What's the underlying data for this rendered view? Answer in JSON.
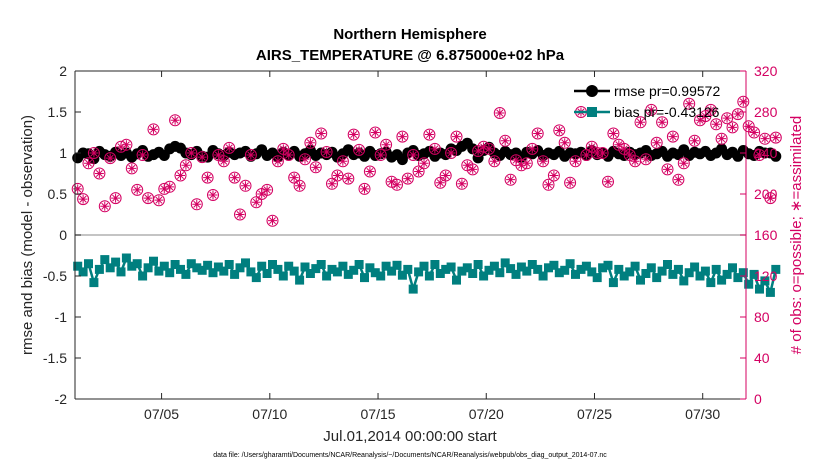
{
  "chart_data": {
    "type": "line",
    "title": "Northern Hemisphere",
    "subtitle": "AIRS_TEMPERATURE @ 6.875000e+02 hPa",
    "xlabel": "Jul.01,2014 00:00:00 start",
    "ylabel_left": "rmse and bias (model - observation)",
    "ylabel_right": "# of obs: o=possible; ∗=assimilated",
    "ylim_left": [
      -2,
      2
    ],
    "ylim_right": [
      0,
      320
    ],
    "xlim_days": [
      1,
      32
    ],
    "yticks_left": [
      "-2",
      "-1.5",
      "-1",
      "-0.5",
      "0",
      "0.5",
      "1",
      "1.5",
      "2"
    ],
    "yticks_right": [
      "0",
      "40",
      "80",
      "120",
      "160",
      "200",
      "240",
      "280",
      "320"
    ],
    "xticks": [
      {
        "day": 5,
        "label": "07/05"
      },
      {
        "day": 10,
        "label": "07/10"
      },
      {
        "day": 15,
        "label": "07/15"
      },
      {
        "day": 20,
        "label": "07/20"
      },
      {
        "day": 25,
        "label": "07/25"
      },
      {
        "day": 30,
        "label": "07/30"
      }
    ],
    "zero_line": true,
    "legend": [
      "rmse pr=0.99572",
      "bias pr=-0.43126"
    ],
    "footnote": "data file: /Users/gharamti/Documents/NCAR/Reanalysis/~/Documents/NCAR/Reanalysis/webpub/obs_diag_output_2014-07.nc",
    "series": [
      {
        "name": "rmse",
        "axis": "left",
        "color": "#000000",
        "x_start": 1.125,
        "x_step": 0.25,
        "values": [
          0.94,
          1.0,
          0.99,
          0.93,
          1.02,
          0.98,
          0.96,
          1.01,
          0.97,
          1.0,
          0.95,
          0.99,
          1.03,
          0.96,
          0.98,
          1.01,
          0.97,
          1.05,
          1.08,
          1.06,
          1.0,
          0.98,
          1.02,
          0.96,
          0.95,
          1.03,
          0.99,
          0.97,
          1.01,
          0.98,
          1.0,
          1.02,
          0.96,
          0.99,
          1.04,
          0.97,
          1.0,
          0.95,
          1.01,
          0.98,
          1.02,
          0.96,
          0.99,
          1.03,
          0.97,
          1.0,
          0.98,
          1.01,
          0.95,
          0.99,
          1.04,
          0.98,
          1.0,
          0.96,
          1.02,
          0.97,
          0.99,
          1.01,
          0.95,
          0.98,
          0.92,
          1.0,
          1.03,
          0.97,
          0.99,
          1.02,
          0.96,
          1.0,
          0.98,
          1.05,
          1.03,
          1.08,
          1.12,
          1.05,
          0.94,
          1.03,
          1.07,
          1.0,
          0.97,
          1.02,
          0.98,
          1.0,
          0.95,
          1.01,
          0.99,
          1.03,
          0.97,
          1.0,
          0.98,
          1.02,
          0.96,
          1.0,
          0.99,
          1.01,
          0.97,
          1.03,
          0.98,
          1.0,
          0.96,
          1.02,
          0.99,
          0.97,
          1.01,
          0.98,
          1.0,
          1.03,
          0.97,
          0.99,
          1.02,
          0.96,
          1.0,
          0.98,
          1.04,
          0.97,
          1.01,
          0.99,
          1.02,
          0.97,
          1.0,
          1.05,
          0.98,
          1.01,
          0.96,
          1.03,
          0.99,
          0.97,
          1.02,
          1.0,
          1.0,
          0.96
        ]
      },
      {
        "name": "bias",
        "axis": "left",
        "color": "#007f7f",
        "x_start": 1.125,
        "x_step": 0.25,
        "values": [
          -0.38,
          -0.45,
          -0.35,
          -0.58,
          -0.42,
          -0.3,
          -0.4,
          -0.33,
          -0.45,
          -0.28,
          -0.38,
          -0.35,
          -0.5,
          -0.4,
          -0.32,
          -0.44,
          -0.38,
          -0.46,
          -0.36,
          -0.42,
          -0.48,
          -0.35,
          -0.4,
          -0.43,
          -0.37,
          -0.46,
          -0.39,
          -0.44,
          -0.36,
          -0.48,
          -0.4,
          -0.34,
          -0.45,
          -0.52,
          -0.38,
          -0.47,
          -0.36,
          -0.42,
          -0.5,
          -0.38,
          -0.44,
          -0.55,
          -0.39,
          -0.47,
          -0.41,
          -0.36,
          -0.5,
          -0.42,
          -0.45,
          -0.38,
          -0.48,
          -0.43,
          -0.36,
          -0.52,
          -0.4,
          -0.46,
          -0.5,
          -0.38,
          -0.44,
          -0.37,
          -0.49,
          -0.42,
          -0.66,
          -0.45,
          -0.38,
          -0.5,
          -0.36,
          -0.47,
          -0.42,
          -0.39,
          -0.55,
          -0.44,
          -0.4,
          -0.47,
          -0.36,
          -0.5,
          -0.43,
          -0.38,
          -0.46,
          -0.34,
          -0.41,
          -0.48,
          -0.39,
          -0.44,
          -0.36,
          -0.42,
          -0.5,
          -0.4,
          -0.37,
          -0.46,
          -0.43,
          -0.35,
          -0.48,
          -0.42,
          -0.38,
          -0.45,
          -0.52,
          -0.4,
          -0.37,
          -0.58,
          -0.42,
          -0.5,
          -0.45,
          -0.38,
          -0.55,
          -0.47,
          -0.4,
          -0.52,
          -0.44,
          -0.36,
          -0.48,
          -0.42,
          -0.56,
          -0.46,
          -0.39,
          -0.5,
          -0.44,
          -0.58,
          -0.42,
          -0.55,
          -0.48,
          -0.4,
          -0.52,
          -0.46,
          -0.6,
          -0.48,
          -0.66,
          -0.56,
          -0.7,
          -0.42
        ]
      },
      {
        "name": "obs_possible",
        "axis": "right",
        "color": "#d40062",
        "x_start": 1.125,
        "x_step": 0.25,
        "values": [
          205,
          195,
          230,
          240,
          220,
          188,
          235,
          196,
          246,
          248,
          225,
          204,
          238,
          196,
          263,
          194,
          205,
          207,
          272,
          218,
          228,
          240,
          190,
          236,
          216,
          199,
          238,
          232,
          245,
          216,
          180,
          208,
          238,
          192,
          200,
          204,
          174,
          232,
          244,
          238,
          216,
          208,
          234,
          250,
          226,
          259,
          241,
          210,
          218,
          232,
          215,
          258,
          243,
          205,
          222,
          260,
          238,
          248,
          212,
          209,
          256,
          215,
          238,
          222,
          230,
          258,
          244,
          211,
          218,
          240,
          256,
          210,
          228,
          224,
          242,
          246,
          244,
          232,
          279,
          252,
          214,
          233,
          228,
          230,
          244,
          259,
          232,
          209,
          218,
          262,
          250,
          211,
          232,
          280,
          238,
          246,
          240,
          240,
          212,
          259,
          248,
          244,
          238,
          232,
          270,
          234,
          282,
          250,
          270,
          224,
          256,
          214,
          230,
          288,
          252,
          272,
          276,
          282,
          268,
          254,
          274,
          265,
          278,
          290,
          266,
          260,
          238,
          254,
          196,
          255
        ]
      },
      {
        "name": "obs_assimilated",
        "axis": "right",
        "color": "#d40062",
        "x_start": 1.125,
        "x_step": 0.25,
        "values": [
          205,
          195,
          230,
          240,
          220,
          188,
          235,
          196,
          246,
          248,
          225,
          204,
          238,
          196,
          263,
          194,
          205,
          207,
          272,
          218,
          228,
          240,
          190,
          236,
          216,
          199,
          238,
          232,
          245,
          216,
          180,
          208,
          238,
          192,
          200,
          204,
          174,
          232,
          244,
          238,
          216,
          208,
          234,
          250,
          226,
          259,
          241,
          210,
          218,
          232,
          215,
          258,
          243,
          205,
          222,
          260,
          238,
          248,
          212,
          209,
          256,
          215,
          238,
          222,
          230,
          258,
          244,
          211,
          218,
          240,
          256,
          210,
          228,
          224,
          242,
          246,
          244,
          232,
          279,
          252,
          214,
          233,
          228,
          230,
          244,
          259,
          232,
          209,
          218,
          262,
          250,
          211,
          232,
          280,
          238,
          246,
          240,
          240,
          212,
          259,
          248,
          244,
          238,
          232,
          270,
          234,
          282,
          250,
          270,
          224,
          256,
          214,
          230,
          288,
          252,
          272,
          276,
          282,
          268,
          254,
          274,
          265,
          278,
          290,
          266,
          260,
          238,
          254,
          196,
          255
        ]
      }
    ]
  }
}
